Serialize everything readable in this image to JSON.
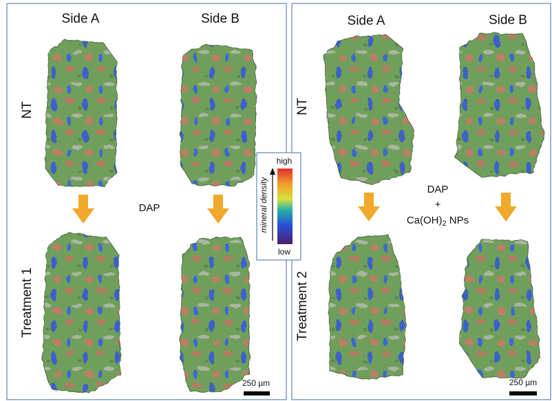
{
  "left_panel": {
    "columns": [
      "Side A",
      "Side B"
    ],
    "rows": [
      "NT",
      "Treatment 1"
    ],
    "treatment_lines": [
      "DAP"
    ],
    "scale_bar": "250 µm"
  },
  "right_panel": {
    "columns": [
      "Side A",
      "Side B"
    ],
    "rows": [
      "NT",
      "Treatment 2"
    ],
    "treatment_lines": [
      "DAP",
      "+"
    ],
    "treatment_formula": [
      "Ca(OH)",
      "2",
      " NPs"
    ],
    "scale_bar": "250 µm"
  },
  "legend": {
    "title": "mineral density",
    "high": "high",
    "low": "low"
  }
}
